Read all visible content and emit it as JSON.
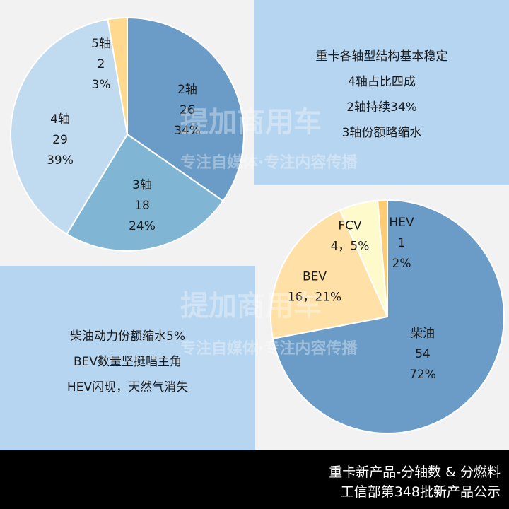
{
  "notes_top": [
    "重卡各轴型结构基本稳定",
    "4轴占比四成",
    "2轴持续34%",
    "3轴份额略缩水"
  ],
  "notes_bottom": [
    "柴油动力份额缩水5%",
    "BEV数量坚挺唱主角",
    "HEV闪现，天然气消失"
  ],
  "footer": {
    "line1": "重卡新产品-分轴数 & 分燃料",
    "line2": "工信部第348批新产品公示"
  },
  "watermark": {
    "brand": "提加商用车",
    "slogan": "专注自媒体·专注内容传播"
  },
  "chart_data": [
    {
      "type": "pie",
      "categories": [
        "2轴",
        "3轴",
        "4轴",
        "5轴"
      ],
      "values": [
        26,
        18,
        29,
        2
      ],
      "labels": [
        [
          "2轴",
          "26",
          "34%"
        ],
        [
          "3轴",
          "18",
          "24%"
        ],
        [
          "4轴",
          "29",
          "39%"
        ],
        [
          "5轴",
          "2",
          "3%"
        ]
      ],
      "colors": [
        "#6a9cc7",
        "#80b6d3",
        "#c0daf0",
        "#ffd98e"
      ]
    },
    {
      "type": "pie",
      "categories": [
        "柴油",
        "BEV",
        "FCV",
        "HEV"
      ],
      "values": [
        54,
        16,
        4,
        1
      ],
      "labels": [
        [
          "柴油",
          "54",
          "72%"
        ],
        [
          "BEV",
          "16，21%"
        ],
        [
          "FCV",
          "4，5%"
        ],
        [
          "HEV",
          "1",
          "2%"
        ]
      ],
      "colors": [
        "#6a9cc7",
        "#ffe1a8",
        "#fffacc",
        "#ffcb72"
      ]
    }
  ]
}
